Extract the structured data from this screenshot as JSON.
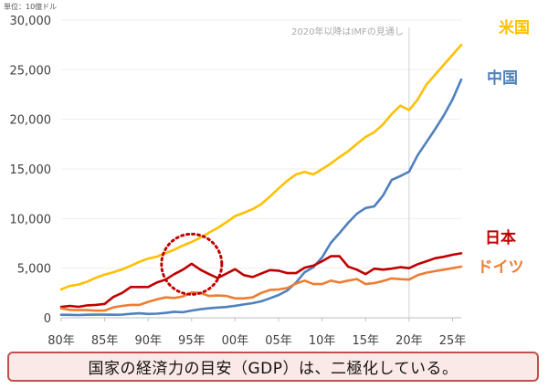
{
  "unit_note": "単位：10億ドル",
  "caption": "国家の経済力の目安（GDP）は、二極化している。",
  "chart_data": {
    "type": "line",
    "annotation": "2020年以降はIMFの見通し",
    "x_tick_labels": [
      "80年",
      "85年",
      "90年",
      "95年",
      "00年",
      "05年",
      "10年",
      "15年",
      "20年",
      "25年"
    ],
    "y_tick_labels": [
      "0",
      "5,000",
      "10,000",
      "15,000",
      "20,000",
      "25,000",
      "30,000"
    ],
    "xlim": [
      1980,
      2026
    ],
    "ylim": [
      0,
      30000
    ],
    "projection_start": 2020,
    "highlight": {
      "x": 1995,
      "y": 5400
    },
    "x": [
      1980,
      1981,
      1982,
      1983,
      1984,
      1985,
      1986,
      1987,
      1988,
      1989,
      1990,
      1991,
      1992,
      1993,
      1994,
      1995,
      1996,
      1997,
      1998,
      1999,
      2000,
      2001,
      2002,
      2003,
      2004,
      2005,
      2006,
      2007,
      2008,
      2009,
      2010,
      2011,
      2012,
      2013,
      2014,
      2015,
      2016,
      2017,
      2018,
      2019,
      2020,
      2021,
      2022,
      2023,
      2024,
      2025,
      2026
    ],
    "series": [
      {
        "name": "米国",
        "color": "#ffc000",
        "values": [
          2860,
          3210,
          3350,
          3640,
          4040,
          4350,
          4590,
          4880,
          5240,
          5640,
          5960,
          6160,
          6520,
          6860,
          7290,
          7640,
          8070,
          8580,
          9060,
          9630,
          10250,
          10580,
          10940,
          11460,
          12210,
          13040,
          13810,
          14450,
          14710,
          14450,
          14990,
          15540,
          16200,
          16780,
          17520,
          18220,
          18710,
          19480,
          20530,
          21380,
          20930,
          22000,
          23500,
          24500,
          25500,
          26500,
          27500
        ]
      },
      {
        "name": "中国",
        "color": "#4f81bd",
        "values": [
          300,
          290,
          280,
          300,
          310,
          310,
          300,
          320,
          400,
          450,
          390,
          410,
          490,
          610,
          560,
          730,
          860,
          960,
          1030,
          1090,
          1210,
          1340,
          1470,
          1660,
          1960,
          2290,
          2750,
          3550,
          4590,
          5100,
          6090,
          7550,
          8530,
          9570,
          10480,
          11060,
          11230,
          12310,
          13890,
          14280,
          14720,
          16400,
          17700,
          19000,
          20400,
          22000,
          24000
        ]
      },
      {
        "name": "日本",
        "color": "#c00000",
        "values": [
          1100,
          1200,
          1100,
          1250,
          1300,
          1400,
          2100,
          2500,
          3100,
          3100,
          3100,
          3550,
          3850,
          4400,
          4850,
          5450,
          4850,
          4400,
          4000,
          4450,
          4900,
          4300,
          4100,
          4450,
          4800,
          4750,
          4500,
          4500,
          5050,
          5250,
          5700,
          6200,
          6200,
          5150,
          4850,
          4400,
          4950,
          4850,
          4950,
          5100,
          5000,
          5400,
          5700,
          6000,
          6150,
          6350,
          6500
        ]
      },
      {
        "name": "ドイツ",
        "color": "#ed7d31",
        "values": [
          950,
          800,
          770,
          770,
          720,
          730,
          1050,
          1200,
          1300,
          1300,
          1600,
          1850,
          2050,
          2000,
          2150,
          2550,
          2500,
          2200,
          2250,
          2200,
          1950,
          1950,
          2050,
          2500,
          2800,
          2850,
          3000,
          3450,
          3750,
          3400,
          3400,
          3750,
          3550,
          3750,
          3900,
          3400,
          3500,
          3700,
          3970,
          3890,
          3850,
          4300,
          4550,
          4700,
          4850,
          5000,
          5150
        ]
      }
    ]
  }
}
